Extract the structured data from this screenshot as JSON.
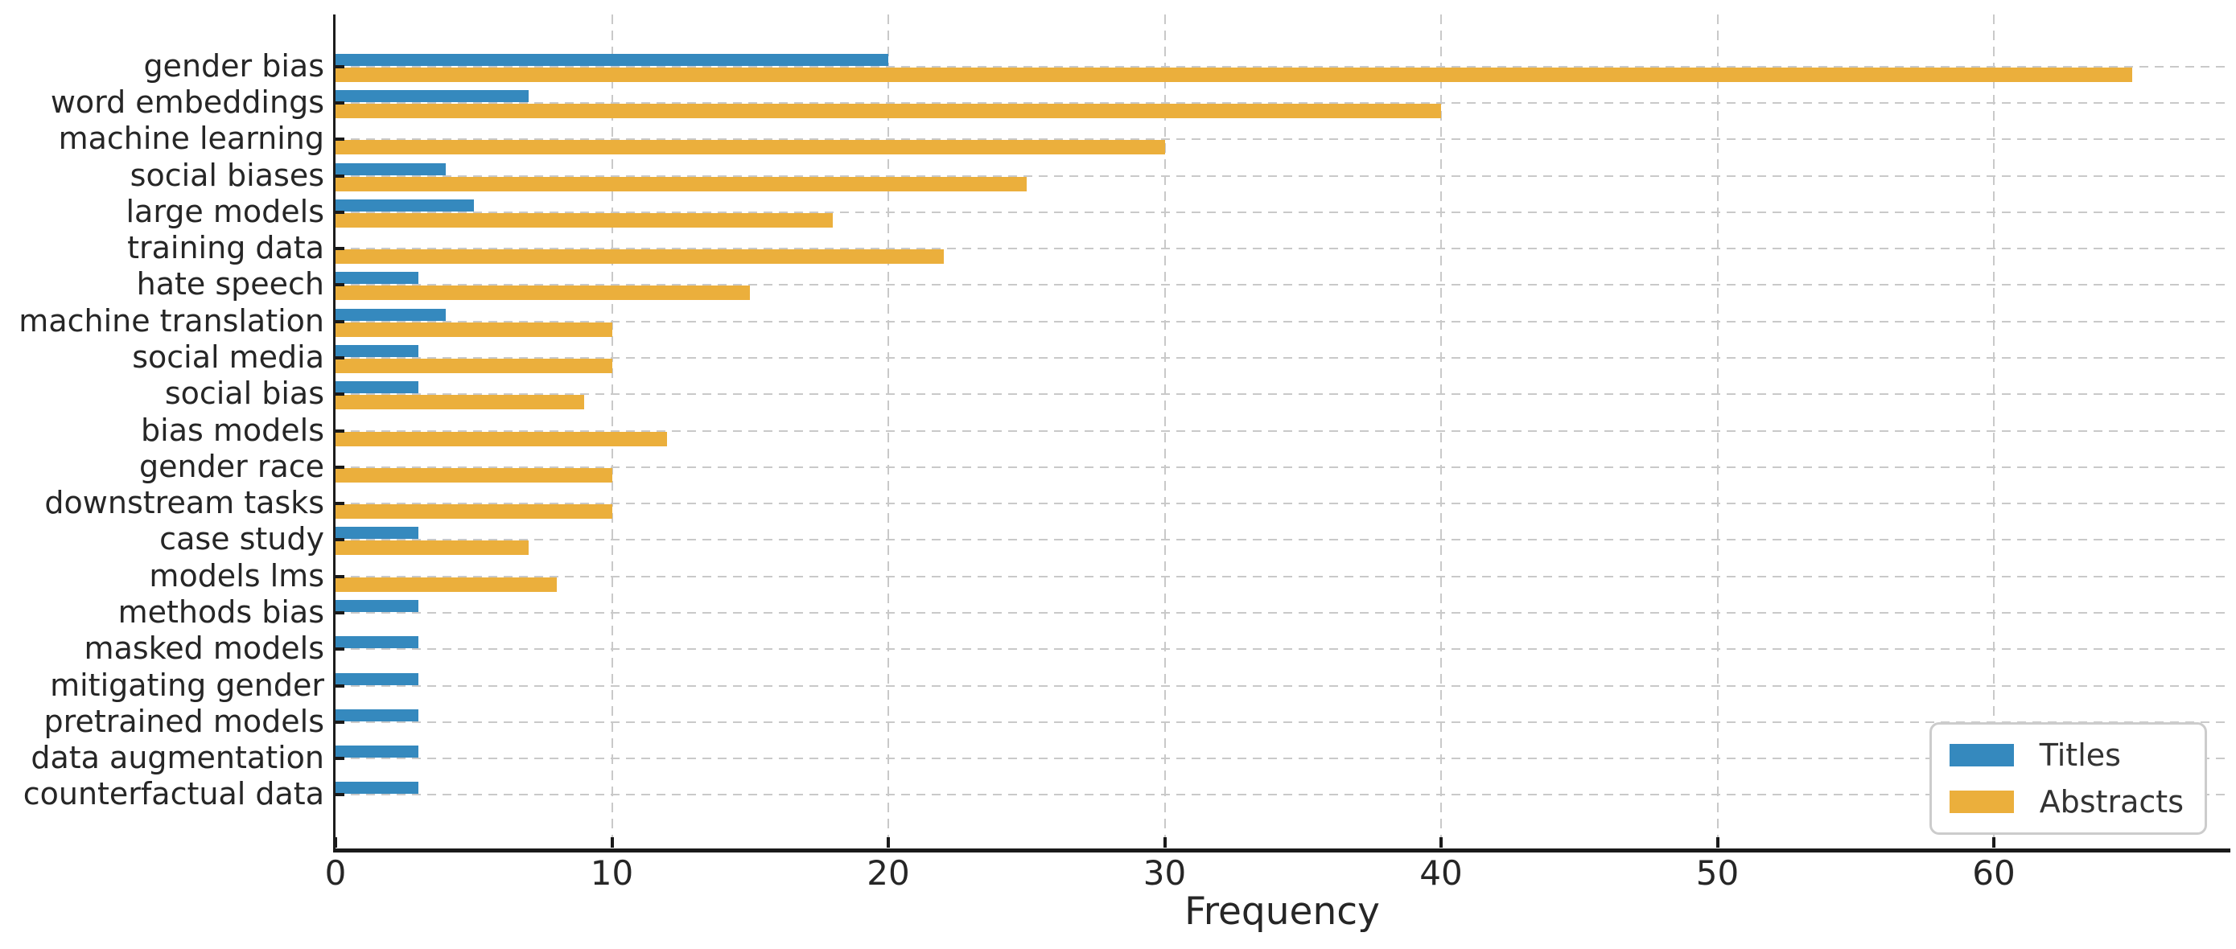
{
  "chart_data": {
    "type": "bar",
    "orientation": "horizontal",
    "title": "",
    "xlabel": "Frequency",
    "ylabel": "",
    "xlim": [
      0,
      68.5
    ],
    "x_ticks": [
      0,
      10,
      20,
      30,
      40,
      50,
      60
    ],
    "grid": true,
    "legend_position": "lower right",
    "categories": [
      "gender bias",
      "word embeddings",
      "machine learning",
      "social biases",
      "large models",
      "training data",
      "hate speech",
      "machine translation",
      "social media",
      "social bias",
      "bias models",
      "gender race",
      "downstream tasks",
      "case study",
      "models lms",
      "methods bias",
      "masked models",
      "mitigating gender",
      "pretrained models",
      "data augmentation",
      "counterfactual data"
    ],
    "series": [
      {
        "name": "Titles",
        "color": "#3589BE",
        "values": [
          20,
          7,
          0,
          4,
          5,
          0,
          3,
          4,
          3,
          3,
          0,
          0,
          0,
          3,
          0,
          3,
          3,
          3,
          3,
          3,
          3
        ]
      },
      {
        "name": "Abstracts",
        "color": "#EBAF3C",
        "values": [
          65,
          40,
          30,
          25,
          18,
          22,
          15,
          10,
          10,
          9,
          12,
          10,
          10,
          7,
          8,
          0,
          0,
          0,
          0,
          0,
          0
        ]
      }
    ]
  },
  "colors": {
    "titles_bar": "#3589BE",
    "abstracts_bar": "#EBAF3C",
    "grid": "#C9C9C9",
    "spine": "#1C1C1C",
    "text": "#262626",
    "legend_border": "#CCCCCC"
  }
}
